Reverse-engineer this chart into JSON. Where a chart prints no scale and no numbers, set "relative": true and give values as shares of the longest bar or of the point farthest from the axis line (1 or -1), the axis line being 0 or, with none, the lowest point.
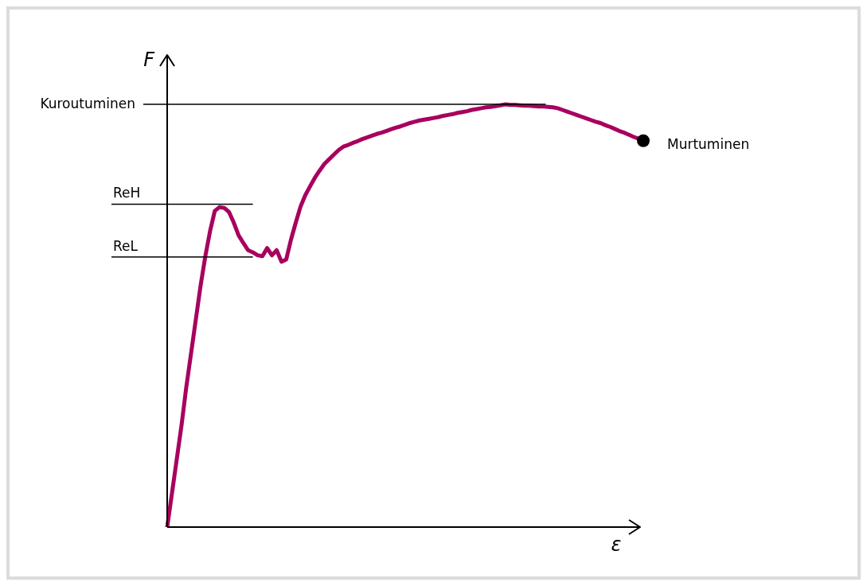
{
  "chart_data": {
    "type": "line",
    "relative": true,
    "xlabel": "ε",
    "ylabel": "F",
    "marker": "none",
    "line_style": "solid",
    "legend": false,
    "categories": [
      null,
      null,
      null,
      null,
      null,
      null,
      null,
      null,
      null,
      null,
      null,
      null,
      null,
      null,
      null,
      null,
      null,
      null,
      null,
      null,
      null,
      null,
      null,
      null,
      null,
      null,
      null,
      null,
      null,
      null,
      null,
      null,
      null,
      null,
      null,
      null,
      null,
      null,
      null,
      null,
      null,
      null,
      null,
      null,
      null,
      null,
      null,
      null,
      null,
      null,
      null,
      null,
      null,
      null,
      null,
      null,
      null,
      null,
      null,
      null,
      null,
      null,
      null,
      null,
      null,
      null,
      null,
      null,
      null,
      null,
      null,
      null,
      null,
      null,
      null,
      null,
      null,
      null,
      null,
      null,
      null,
      null,
      null,
      null,
      null,
      null,
      null,
      null,
      null,
      null,
      null,
      null,
      null,
      null,
      null,
      null,
      null,
      null,
      null,
      null,
      null
    ],
    "series": [
      {
        "color": "#a8005e",
        "values": [
          0,
          0.08,
          0.16,
          0.24,
          0.33,
          0.41,
          0.49,
          0.57,
          0.64,
          0.7,
          0.748,
          0.757,
          0.755,
          0.745,
          0.72,
          0.69,
          0.672,
          0.655,
          0.65,
          0.643,
          0.641,
          0.66,
          0.643,
          0.655,
          0.628,
          0.633,
          0.68,
          0.72,
          0.758,
          0.785,
          0.806,
          0.826,
          0.843,
          0.859,
          0.87,
          0.881,
          0.892,
          0.9,
          0.904,
          0.909,
          0.913,
          0.918,
          0.922,
          0.926,
          0.93,
          0.933,
          0.937,
          0.941,
          0.945,
          0.948,
          0.952,
          0.956,
          0.959,
          0.962,
          0.964,
          0.966,
          0.968,
          0.97,
          0.973,
          0.975,
          0.977,
          0.98,
          0.982,
          0.984,
          0.987,
          0.989,
          0.991,
          0.993,
          0.994,
          0.996,
          0.998,
          1,
          0.999,
          0.999,
          0.998,
          0.997,
          0.997,
          0.996,
          0.995,
          0.995,
          0.994,
          0.993,
          0.991,
          0.987,
          0.983,
          0.979,
          0.975,
          0.971,
          0.967,
          0.963,
          0.959,
          0.956,
          0.951,
          0.947,
          0.942,
          0.937,
          0.933,
          0.928,
          0.923,
          0.919,
          0.914
        ]
      }
    ],
    "ref_lines": [
      {
        "axis": "y",
        "value": 1,
        "label": "Kuroutuminen",
        "color": "#000000"
      },
      {
        "axis": "y",
        "value": 0.764,
        "label": "ReH",
        "color": "#000000"
      },
      {
        "axis": "y",
        "value": 0.639,
        "label": "ReL",
        "color": "#000000"
      }
    ],
    "annotations": [
      "Murtuminen"
    ]
  }
}
